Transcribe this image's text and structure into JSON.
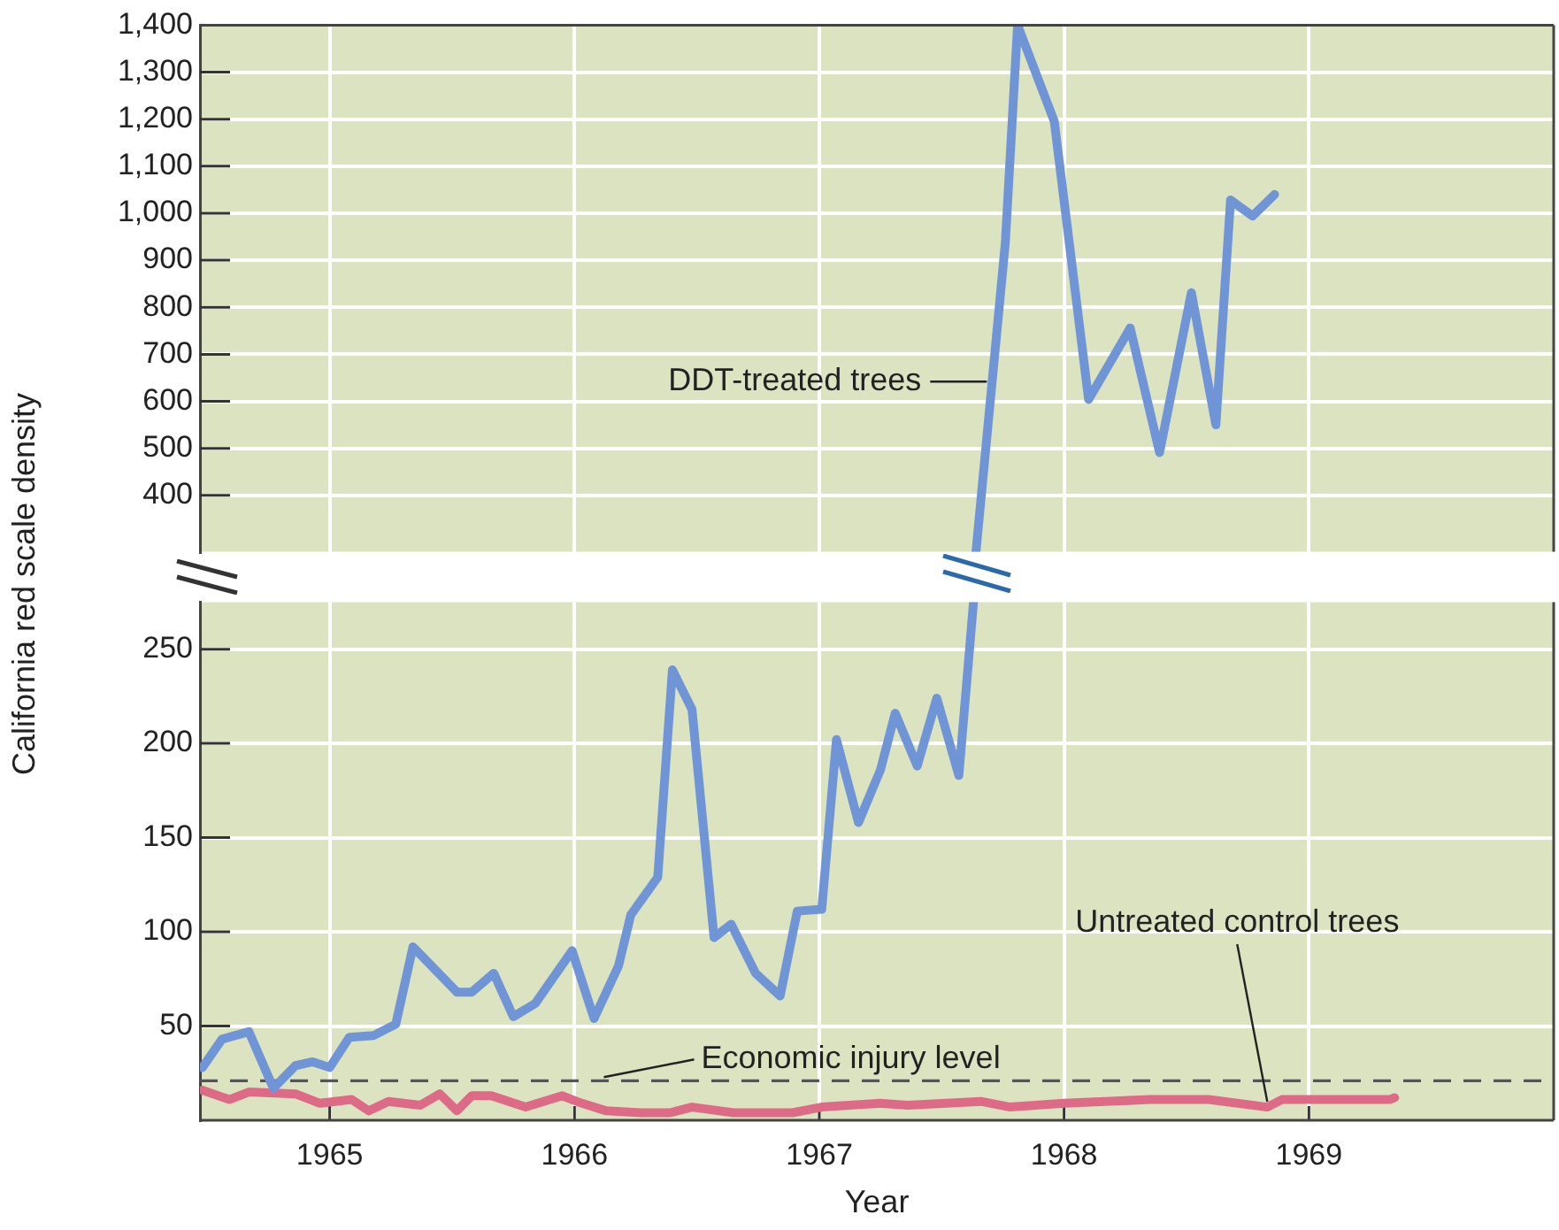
{
  "chart_data": [
    {
      "type": "line",
      "xlim": [
        1964.47,
        1970
      ],
      "xticks": [
        1965,
        1966,
        1967,
        1968,
        1969
      ],
      "ylim": [
        280,
        1400
      ],
      "yticks": [
        400,
        500,
        600,
        700,
        800,
        900,
        {
          "value": 1000,
          "label": "1,000"
        },
        {
          "value": 1100,
          "label": "1,100"
        },
        {
          "value": 1200,
          "label": "1,200"
        },
        {
          "value": 1300,
          "label": "1,300"
        },
        {
          "value": 1400,
          "label": "1,400"
        }
      ],
      "tick_labels": "y",
      "grid": true,
      "marker": "none",
      "series": [
        {
          "name": "DDT-treated trees",
          "color": "#6f95d6",
          "x": [
            1967.64,
            1967.76,
            1967.81,
            1967.96,
            1968.1,
            1968.27,
            1968.39,
            1968.52,
            1968.62,
            1968.68,
            1968.77,
            1968.86
          ],
          "values": [
            280,
            938,
            1400,
            1195,
            604,
            756,
            491,
            831,
            550,
            1028,
            994,
            1040
          ]
        }
      ]
    },
    {
      "type": "line",
      "xlabel": "Year",
      "ylabel": "California red scale density",
      "xlim": [
        1964.47,
        1970
      ],
      "xticks": [
        1965,
        1966,
        1967,
        1968,
        1969
      ],
      "ylim": [
        0,
        275
      ],
      "yticks": [
        50,
        100,
        150,
        200,
        250
      ],
      "grid": true,
      "marker": "none",
      "ref_lines": [
        {
          "axis": "y",
          "value": 21,
          "color": "#555555",
          "line_style": "dashed"
        }
      ],
      "annotations": [
        {
          "text": "Economic injury level",
          "x": 1966.12,
          "y": 21
        }
      ],
      "series": [
        {
          "color": "#6f95d6",
          "x": [
            1964.48,
            1964.56,
            1964.67,
            1964.77,
            1964.86,
            1964.93,
            1965.0,
            1965.08,
            1965.18,
            1965.27,
            1965.34,
            1965.52,
            1965.58,
            1965.67,
            1965.75,
            1965.84,
            1965.99,
            1966.08,
            1966.18,
            1966.23,
            1966.34,
            1966.4,
            1966.48,
            1966.57,
            1966.64,
            1966.74,
            1966.84,
            1966.91,
            1967.01,
            1967.07,
            1967.16,
            1967.25,
            1967.31,
            1967.4,
            1967.48,
            1967.57,
            1967.63
          ],
          "values": [
            28,
            43,
            47,
            17,
            29,
            31,
            28,
            44,
            45,
            51,
            92,
            68,
            68,
            78,
            55,
            62,
            90,
            54,
            82,
            109,
            129,
            239,
            218,
            97,
            104,
            78,
            66,
            111,
            112,
            202,
            158,
            186,
            216,
            188,
            224,
            183,
            275
          ]
        },
        {
          "name": "Untreated control trees",
          "color": "#dd6a86",
          "x": [
            1964.48,
            1964.59,
            1964.67,
            1964.86,
            1964.96,
            1965.09,
            1965.16,
            1965.24,
            1965.37,
            1965.45,
            1965.52,
            1965.58,
            1965.66,
            1965.8,
            1965.95,
            1966.03,
            1966.13,
            1966.27,
            1966.39,
            1966.48,
            1966.65,
            1966.89,
            1967.01,
            1967.25,
            1967.36,
            1967.66,
            1967.78,
            1968.0,
            1968.35,
            1968.59,
            1968.83,
            1968.89,
            1969.33,
            1969.35
          ],
          "values": [
            16,
            11,
            15,
            14,
            9,
            11,
            5,
            10,
            8,
            14,
            5,
            13,
            13,
            7,
            13,
            9,
            5,
            4,
            4,
            7,
            4,
            4,
            7,
            9,
            8,
            10,
            7,
            9,
            11,
            11,
            7,
            11,
            11,
            12
          ]
        }
      ]
    }
  ]
}
